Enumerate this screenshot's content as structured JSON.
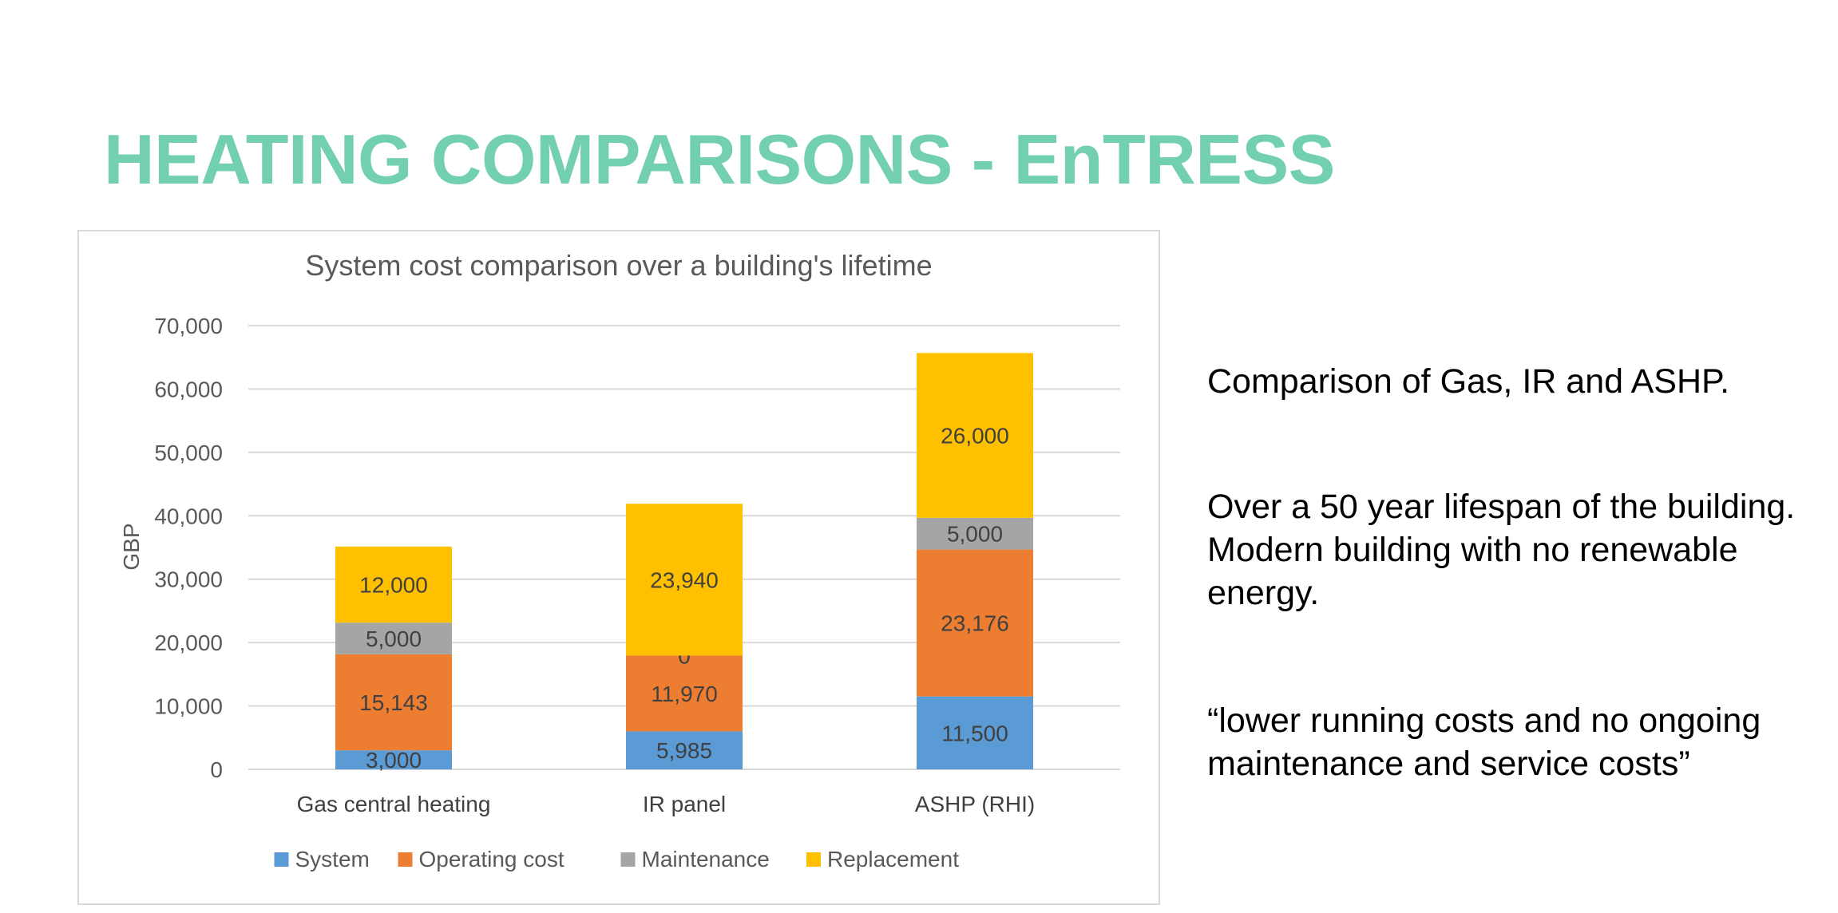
{
  "slide": {
    "title": "HEATING COMPARISONS - EnTRESS",
    "paragraphs": [
      "Comparison of Gas, IR and ASHP.",
      "Over a 50 year lifespan of the building. Modern building with no renewable energy.",
      "“lower running costs and no ongoing maintenance and service costs”"
    ]
  },
  "chart_data": {
    "type": "bar",
    "stacked": true,
    "title": "System cost comparison over a building's lifetime",
    "xlabel": "",
    "ylabel": "GBP",
    "ylim": [
      0,
      70000
    ],
    "yticks": [
      0,
      10000,
      20000,
      30000,
      40000,
      50000,
      60000,
      70000
    ],
    "ytick_labels": [
      "0",
      "10,000",
      "20,000",
      "30,000",
      "40,000",
      "50,000",
      "60,000",
      "70,000"
    ],
    "categories": [
      "Gas central heating",
      "IR panel",
      "ASHP (RHI)"
    ],
    "series": [
      {
        "name": "System",
        "color": "#5b9bd5",
        "values": [
          3000,
          5985,
          11500
        ],
        "labels": [
          "3,000",
          "5,985",
          "11,500"
        ]
      },
      {
        "name": "Operating cost",
        "color": "#ed7d31",
        "values": [
          15143,
          11970,
          23176
        ],
        "labels": [
          "15,143",
          "11,970",
          "23,176"
        ]
      },
      {
        "name": "Maintenance",
        "color": "#a5a5a5",
        "values": [
          5000,
          0,
          5000
        ],
        "labels": [
          "5,000",
          "0",
          "5,000"
        ]
      },
      {
        "name": "Replacement",
        "color": "#ffc000",
        "values": [
          12000,
          23940,
          26000
        ],
        "labels": [
          "12,000",
          "23,940",
          "26,000"
        ]
      }
    ],
    "grid": true,
    "legend_position": "bottom"
  }
}
